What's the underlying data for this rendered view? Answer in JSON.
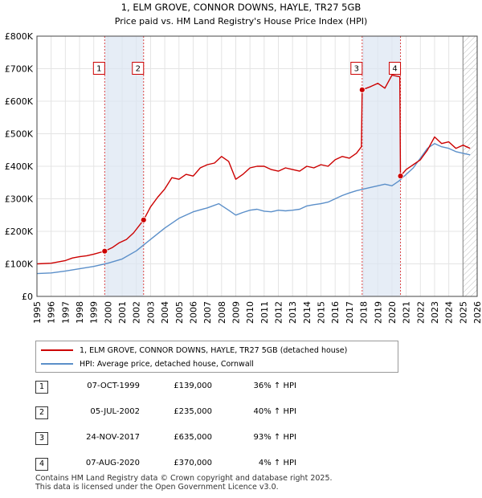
{
  "chart_data": {
    "type": "line",
    "title": "1, ELM GROVE, CONNOR DOWNS, HAYLE, TR27 5GB",
    "subtitle": "Price paid vs. HM Land Registry's House Price Index (HPI)",
    "xlim": [
      1995,
      2026
    ],
    "ylim": [
      0,
      800000
    ],
    "yticks": [
      0,
      100000,
      200000,
      300000,
      400000,
      500000,
      600000,
      700000,
      800000
    ],
    "ytick_labels": [
      "£0",
      "£100K",
      "£200K",
      "£300K",
      "£400K",
      "£500K",
      "£600K",
      "£700K",
      "£800K"
    ],
    "xticks": [
      1995,
      1996,
      1997,
      1998,
      1999,
      2000,
      2001,
      2002,
      2003,
      2004,
      2005,
      2006,
      2007,
      2008,
      2009,
      2010,
      2011,
      2012,
      2013,
      2014,
      2015,
      2016,
      2017,
      2018,
      2019,
      2020,
      2021,
      2022,
      2023,
      2024,
      2025,
      2026
    ],
    "xtick_labels": [
      "1995",
      "1996",
      "1997",
      "1998",
      "1999",
      "2000",
      "2001",
      "2002",
      "2003",
      "2004",
      "2005",
      "2006",
      "2007",
      "2008",
      "2009",
      "2010",
      "2011",
      "2012",
      "2013",
      "2014",
      "2015",
      "2016",
      "2017",
      "2018",
      "2019",
      "2020",
      "2021",
      "2022",
      "2023",
      "2024",
      "2025",
      "2026"
    ],
    "grid": true,
    "future_hatch_from": 2025.0,
    "series": [
      {
        "name": "1, ELM GROVE, CONNOR DOWNS, HAYLE, TR27 5GB (detached house)",
        "color": "#cc0000",
        "x": [
          1995.0,
          1996.0,
          1997.0,
          1997.5,
          1998.0,
          1998.5,
          1999.0,
          1999.77,
          2000.3,
          2000.8,
          2001.3,
          2001.8,
          2002.51,
          2003.0,
          2003.5,
          2004.0,
          2004.5,
          2005.0,
          2005.5,
          2006.0,
          2006.5,
          2007.0,
          2007.5,
          2008.0,
          2008.5,
          2009.0,
          2009.5,
          2010.0,
          2010.5,
          2011.0,
          2011.5,
          2012.0,
          2012.5,
          2013.0,
          2013.5,
          2014.0,
          2014.5,
          2015.0,
          2015.5,
          2016.0,
          2016.5,
          2017.0,
          2017.5,
          2017.85,
          2017.9,
          2018.5,
          2019.0,
          2019.5,
          2020.0,
          2020.55,
          2020.6,
          2021.0,
          2021.5,
          2022.0,
          2022.5,
          2023.0,
          2023.5,
          2024.0,
          2024.5,
          2025.0,
          2025.5
        ],
        "values": [
          100000,
          102000,
          110000,
          118000,
          122000,
          125000,
          130000,
          139000,
          150000,
          165000,
          175000,
          195000,
          235000,
          275000,
          305000,
          330000,
          365000,
          360000,
          375000,
          370000,
          395000,
          405000,
          410000,
          430000,
          415000,
          360000,
          375000,
          395000,
          400000,
          400000,
          390000,
          385000,
          395000,
          390000,
          385000,
          400000,
          395000,
          405000,
          400000,
          420000,
          430000,
          425000,
          440000,
          460000,
          635000,
          645000,
          655000,
          640000,
          680000,
          675000,
          370000,
          390000,
          405000,
          420000,
          450000,
          490000,
          470000,
          475000,
          455000,
          465000,
          455000
        ]
      },
      {
        "name": "HPI: Average price, detached house, Cornwall",
        "color": "#5b8fc9",
        "x": [
          1995.0,
          1996.0,
          1997.0,
          1998.0,
          1999.0,
          2000.0,
          2001.0,
          2002.0,
          2003.0,
          2004.0,
          2005.0,
          2006.0,
          2007.0,
          2007.8,
          2008.5,
          2009.0,
          2009.5,
          2010.0,
          2010.5,
          2011.0,
          2011.5,
          2012.0,
          2012.5,
          2013.0,
          2013.5,
          2014.0,
          2014.5,
          2015.0,
          2015.5,
          2016.0,
          2016.5,
          2017.0,
          2017.5,
          2018.0,
          2018.5,
          2019.0,
          2019.5,
          2020.0,
          2020.5,
          2021.0,
          2021.5,
          2022.0,
          2022.5,
          2023.0,
          2023.5,
          2024.0,
          2024.5,
          2025.0,
          2025.5
        ],
        "values": [
          70000,
          72000,
          78000,
          85000,
          92000,
          102000,
          115000,
          140000,
          175000,
          210000,
          240000,
          260000,
          272000,
          285000,
          265000,
          250000,
          258000,
          265000,
          268000,
          262000,
          260000,
          265000,
          263000,
          265000,
          268000,
          278000,
          282000,
          285000,
          290000,
          300000,
          310000,
          318000,
          325000,
          330000,
          335000,
          340000,
          345000,
          340000,
          355000,
          375000,
          395000,
          425000,
          455000,
          470000,
          460000,
          455000,
          445000,
          440000,
          435000
        ]
      }
    ],
    "sales": [
      {
        "label": "1",
        "x": 1999.77,
        "value": 139000,
        "box_value": 700000
      },
      {
        "label": "2",
        "x": 2002.51,
        "value": 235000,
        "box_value": 700000
      },
      {
        "label": "3",
        "x": 2017.9,
        "value": 635000,
        "box_value": 700000
      },
      {
        "label": "4",
        "x": 2020.6,
        "value": 370000,
        "box_value": 700000
      }
    ],
    "shaded_spans": [
      [
        1999.77,
        2002.51
      ],
      [
        2017.9,
        2020.6
      ]
    ]
  },
  "legend": {
    "property_label": "1, ELM GROVE, CONNOR DOWNS, HAYLE, TR27 5GB (detached house)",
    "hpi_label": "HPI: Average price, detached house, Cornwall",
    "property_color": "#cc0000",
    "hpi_color": "#5b8fc9"
  },
  "sales_table": [
    {
      "num": "1",
      "date": "07-OCT-1999",
      "price": "£139,000",
      "hpi": "36% ↑ HPI"
    },
    {
      "num": "2",
      "date": "05-JUL-2002",
      "price": "£235,000",
      "hpi": "40% ↑ HPI"
    },
    {
      "num": "3",
      "date": "24-NOV-2017",
      "price": "£635,000",
      "hpi": "93% ↑ HPI"
    },
    {
      "num": "4",
      "date": "07-AUG-2020",
      "price": "£370,000",
      "hpi": "4% ↑ HPI"
    }
  ],
  "footer": {
    "line1": "Contains HM Land Registry data © Crown copyright and database right 2025.",
    "line2": "This data is licensed under the Open Government Licence v3.0."
  }
}
